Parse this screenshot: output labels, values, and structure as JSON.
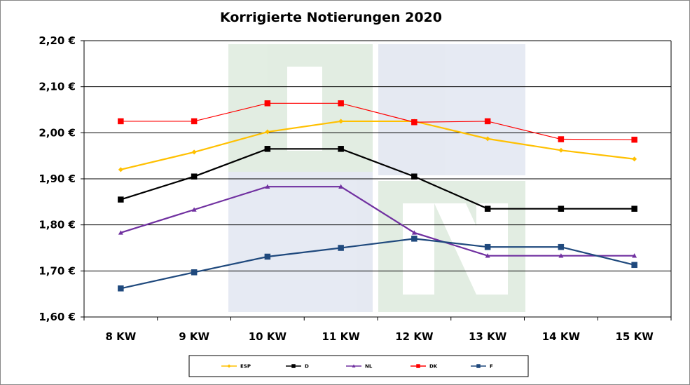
{
  "chart_data": {
    "type": "line",
    "title": "Korrigierte Notierungen 2020",
    "xlabel": "",
    "ylabel": "",
    "categories": [
      "8 KW",
      "9 KW",
      "10 KW",
      "11 KW",
      "12 KW",
      "13 KW",
      "14 KW",
      "15 KW"
    ],
    "ylim": [
      1.6,
      2.2
    ],
    "yticks": [
      "1,60 €",
      "1,70 €",
      "1,80 €",
      "1,90 €",
      "2,00 €",
      "2,10 €",
      "2,20 €"
    ],
    "grid": true,
    "legend_position": "bottom",
    "series": [
      {
        "name": "ESP",
        "color": "#FFC000",
        "marker": "diamond",
        "values": [
          1.92,
          1.958,
          2.002,
          2.025,
          2.025,
          1.987,
          1.962,
          1.943
        ]
      },
      {
        "name": "D",
        "color": "#000000",
        "marker": "square",
        "values": [
          1.855,
          1.905,
          1.965,
          1.965,
          1.905,
          1.835,
          1.835,
          1.835
        ]
      },
      {
        "name": "NL",
        "color": "#7030A0",
        "marker": "triangle",
        "values": [
          1.783,
          1.833,
          1.883,
          1.883,
          1.783,
          1.733,
          1.733,
          1.733
        ]
      },
      {
        "name": "DK",
        "color": "#FF0000",
        "marker": "square",
        "values": [
          2.025,
          2.025,
          2.064,
          2.064,
          2.023,
          2.025,
          1.986,
          1.985
        ]
      },
      {
        "name": "F",
        "color": "#1F497D",
        "marker": "square",
        "values": [
          1.662,
          1.697,
          1.731,
          1.75,
          1.77,
          1.752,
          1.752,
          1.713
        ]
      }
    ]
  }
}
